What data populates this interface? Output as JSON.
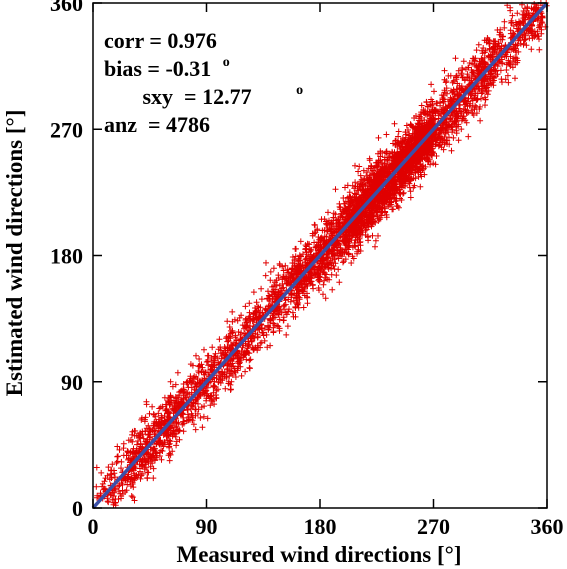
{
  "chart_data": {
    "type": "scatter",
    "xlabel": "Measured wind directions [°]",
    "ylabel": "Estimated wind directions [°]",
    "xlim": [
      0,
      360
    ],
    "ylim": [
      0,
      360
    ],
    "xticks": [
      "0",
      "90",
      "180",
      "270",
      "360"
    ],
    "yticks": [
      "0",
      "90",
      "180",
      "270",
      "360"
    ],
    "grid": false,
    "annotations": {
      "corr": "corr = 0.976",
      "bias": "bias = -0.31",
      "bias_unit": "o",
      "sxy": "sxy  = 12.77",
      "sxy_unit": "o",
      "anz": "anz  = 4786"
    },
    "series": [
      {
        "kind": "scatter",
        "marker": "plus",
        "color": "#e00000",
        "count": 4786,
        "distribution": {
          "clusters": [
            {
              "x_range": [
                2,
                30
              ],
              "weight": 0.03
            },
            {
              "x_range": [
                30,
                70
              ],
              "weight": 0.09
            },
            {
              "x_range": [
                70,
                110
              ],
              "weight": 0.07
            },
            {
              "x_range": [
                110,
                160
              ],
              "weight": 0.09
            },
            {
              "x_range": [
                160,
                200
              ],
              "weight": 0.12
            },
            {
              "x_range": [
                200,
                270
              ],
              "weight": 0.42
            },
            {
              "x_range": [
                270,
                320
              ],
              "weight": 0.12
            },
            {
              "x_range": [
                320,
                360
              ],
              "weight": 0.06
            }
          ],
          "residual_sd": 12.77,
          "bias": -0.31
        }
      },
      {
        "kind": "line",
        "marker": "none",
        "color": "#3a4fa8",
        "x": [
          0,
          360
        ],
        "y": [
          0,
          360
        ]
      }
    ]
  }
}
